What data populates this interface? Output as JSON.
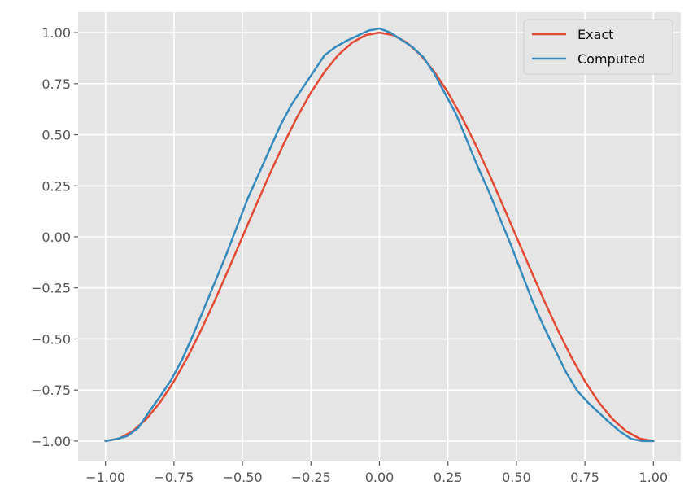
{
  "chart_data": {
    "type": "line",
    "title": "",
    "xlabel": "",
    "ylabel": "",
    "xlim": [
      -1.1,
      1.1
    ],
    "ylim": [
      -1.1,
      1.1
    ],
    "grid": true,
    "legend_placement": "top-right",
    "x_ticks": [
      -1.0,
      -0.75,
      -0.5,
      -0.25,
      0.0,
      0.25,
      0.5,
      0.75,
      1.0
    ],
    "x_tick_labels": [
      "−1.00",
      "−0.75",
      "−0.50",
      "−0.25",
      "0.00",
      "0.25",
      "0.50",
      "0.75",
      "1.00"
    ],
    "y_ticks": [
      1.0,
      0.75,
      0.5,
      0.25,
      0.0,
      -0.25,
      -0.5,
      -0.75,
      -1.0
    ],
    "y_tick_labels": [
      "1.00",
      "0.75",
      "0.50",
      "0.25",
      "0.00",
      "−0.25",
      "−0.50",
      "−0.75",
      "−1.00"
    ],
    "colors": {
      "plot_background": "#e5e5e5",
      "grid": "#ffffff",
      "exact": "#e24a33",
      "computed": "#348abd"
    },
    "series": [
      {
        "name": "Exact",
        "color": "#e24a33",
        "x": [
          -1.0,
          -0.95,
          -0.9,
          -0.85,
          -0.8,
          -0.75,
          -0.7,
          -0.65,
          -0.6,
          -0.55,
          -0.5,
          -0.45,
          -0.4,
          -0.35,
          -0.3,
          -0.25,
          -0.2,
          -0.15,
          -0.1,
          -0.05,
          0.0,
          0.05,
          0.1,
          0.15,
          0.2,
          0.25,
          0.3,
          0.35,
          0.4,
          0.45,
          0.5,
          0.55,
          0.6,
          0.65,
          0.7,
          0.75,
          0.8,
          0.85,
          0.9,
          0.95,
          1.0
        ],
        "y": [
          -1.0,
          -0.988,
          -0.951,
          -0.891,
          -0.809,
          -0.707,
          -0.588,
          -0.454,
          -0.309,
          -0.156,
          0.0,
          0.156,
          0.309,
          0.454,
          0.588,
          0.707,
          0.809,
          0.891,
          0.951,
          0.988,
          1.0,
          0.988,
          0.951,
          0.891,
          0.809,
          0.707,
          0.588,
          0.454,
          0.309,
          0.156,
          0.0,
          -0.156,
          -0.309,
          -0.454,
          -0.588,
          -0.707,
          -0.809,
          -0.891,
          -0.951,
          -0.988,
          -1.0
        ]
      },
      {
        "name": "Computed",
        "color": "#348abd",
        "x": [
          -1.0,
          -0.96,
          -0.92,
          -0.88,
          -0.84,
          -0.8,
          -0.76,
          -0.72,
          -0.68,
          -0.64,
          -0.6,
          -0.56,
          -0.52,
          -0.48,
          -0.44,
          -0.4,
          -0.36,
          -0.32,
          -0.28,
          -0.24,
          -0.2,
          -0.16,
          -0.12,
          -0.08,
          -0.04,
          0.0,
          0.04,
          0.08,
          0.12,
          0.16,
          0.2,
          0.24,
          0.28,
          0.32,
          0.36,
          0.4,
          0.44,
          0.48,
          0.52,
          0.56,
          0.6,
          0.64,
          0.68,
          0.72,
          0.76,
          0.8,
          0.84,
          0.88,
          0.92,
          0.96,
          1.0
        ],
        "y": [
          -1.0,
          -0.99,
          -0.975,
          -0.935,
          -0.855,
          -0.78,
          -0.7,
          -0.6,
          -0.48,
          -0.35,
          -0.22,
          -0.09,
          0.05,
          0.19,
          0.31,
          0.43,
          0.55,
          0.65,
          0.73,
          0.81,
          0.89,
          0.93,
          0.96,
          0.985,
          1.01,
          1.02,
          1.0,
          0.965,
          0.93,
          0.88,
          0.8,
          0.7,
          0.6,
          0.47,
          0.34,
          0.22,
          0.09,
          -0.04,
          -0.18,
          -0.32,
          -0.44,
          -0.55,
          -0.66,
          -0.75,
          -0.81,
          -0.86,
          -0.91,
          -0.955,
          -0.99,
          -1.0,
          -1.0
        ]
      }
    ]
  }
}
